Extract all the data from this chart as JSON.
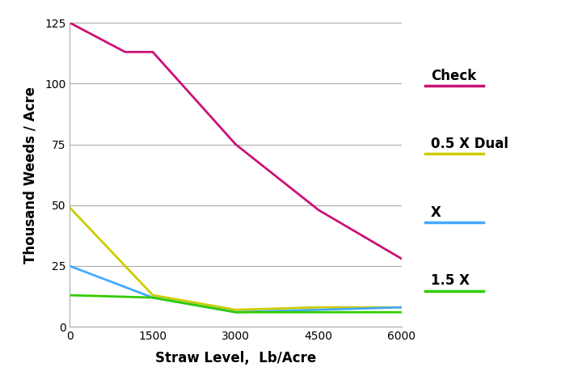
{
  "title": "",
  "xlabel": "Straw Level,  Lb/Acre",
  "ylabel": "Thousand Weeds / Acre",
  "xlim": [
    0,
    6000
  ],
  "ylim": [
    0,
    125
  ],
  "yticks": [
    0,
    25,
    50,
    75,
    100,
    125
  ],
  "xticks": [
    0,
    1500,
    3000,
    4500,
    6000
  ],
  "series": [
    {
      "label": "Check",
      "color": "#cc1177",
      "x": [
        0,
        1000,
        1500,
        3000,
        4500,
        6000
      ],
      "y": [
        125,
        113,
        113,
        75,
        48,
        28
      ]
    },
    {
      "label": "0.5 X Dual",
      "color": "#cccc00",
      "x": [
        0,
        1500,
        3000,
        4500,
        6000
      ],
      "y": [
        49,
        13,
        7,
        8,
        8
      ]
    },
    {
      "label": "X",
      "color": "#44aaff",
      "x": [
        0,
        1500,
        3000,
        4500,
        6000
      ],
      "y": [
        25,
        12,
        6,
        7,
        8
      ]
    },
    {
      "label": "1.5 X",
      "color": "#33cc00",
      "x": [
        0,
        1500,
        3000,
        4500,
        6000
      ],
      "y": [
        13,
        12,
        6,
        6,
        6
      ]
    }
  ],
  "background_color": "#ffffff",
  "grid_color": "#aaaaaa",
  "legend_label_fontsize": 12,
  "axis_label_fontsize": 12,
  "tick_fontsize": 10,
  "linewidth": 2.0,
  "fig_width": 7.2,
  "fig_height": 4.7
}
